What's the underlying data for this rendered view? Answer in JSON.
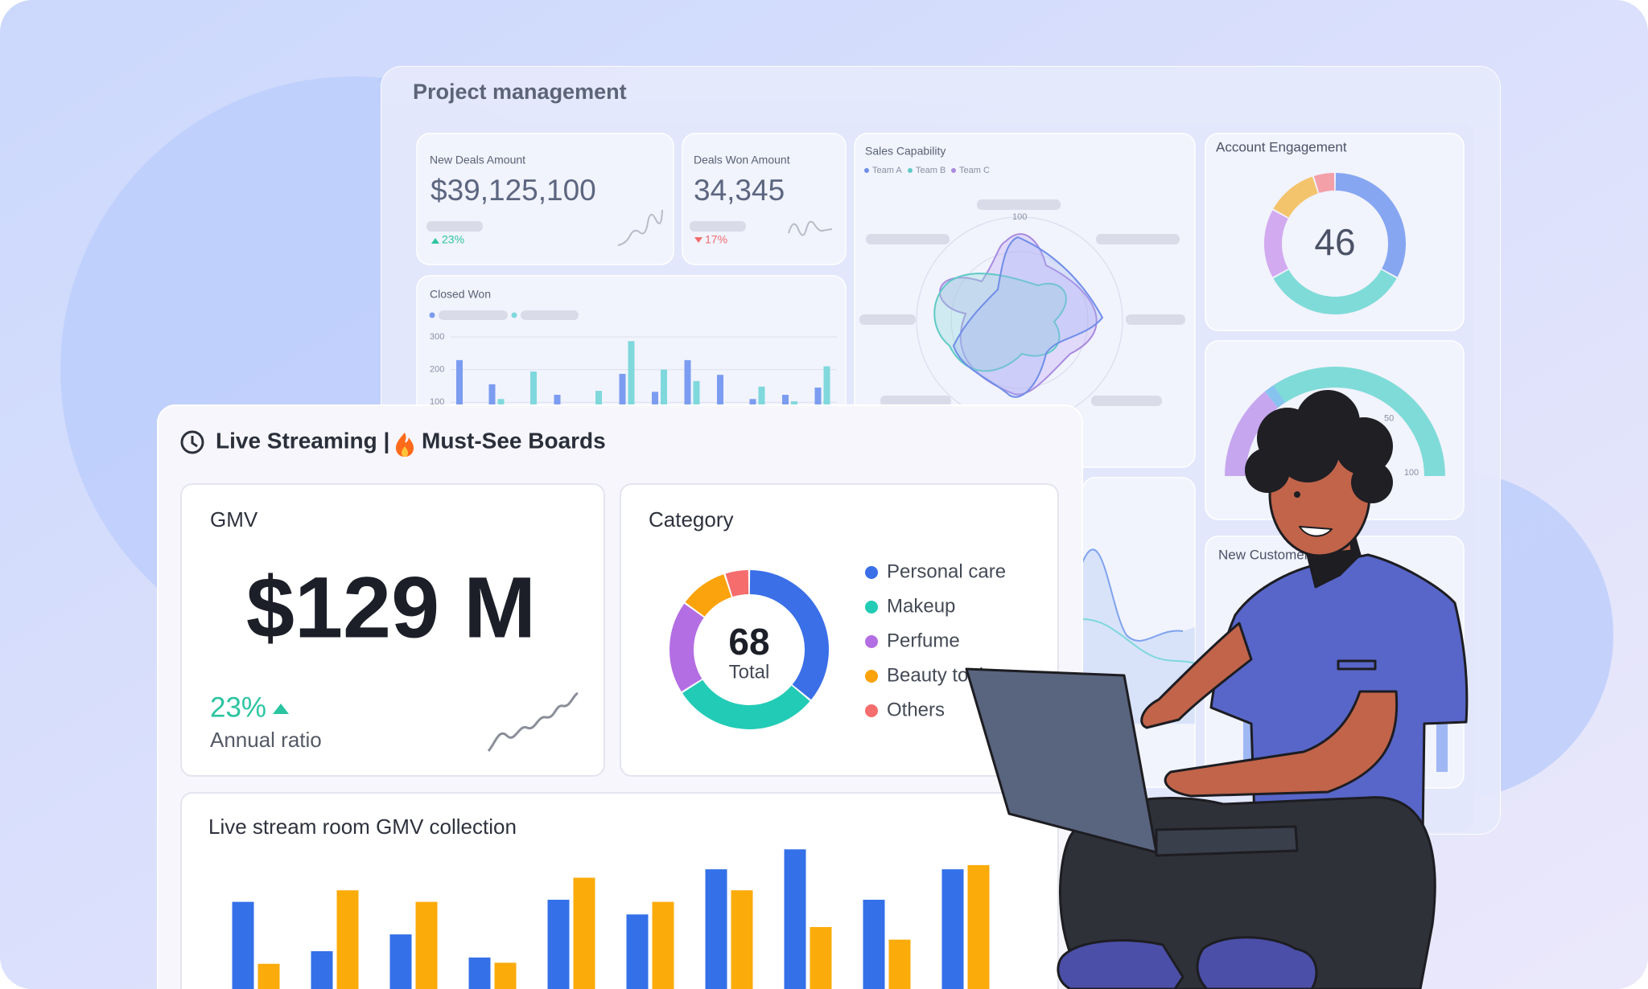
{
  "back_panel": {
    "title": "Project management",
    "new_deals": {
      "label": "New Deals Amount",
      "value": "$39,125,100",
      "change": "23%"
    },
    "deals_won": {
      "label": "Deals Won Amount",
      "value": "34,345",
      "change": "17%"
    },
    "sales_capability": {
      "title": "Sales Capability",
      "legend": [
        "Team A",
        "Team B",
        "Team C"
      ],
      "axis_label": "100"
    },
    "account_engagement": {
      "title": "Account Engagement",
      "center": "46",
      "values": [
        33,
        34,
        16,
        12,
        5
      ],
      "colors": [
        "#86a6f2",
        "#7fdbd8",
        "#d1aaf0",
        "#f3c46c",
        "#f3a0a8"
      ]
    },
    "closed_won": {
      "title": "Closed Won",
      "ylim": [
        0,
        300
      ],
      "yticks": [
        100,
        200,
        300
      ],
      "series": [
        {
          "color": "#7b9cf0",
          "values": [
            229,
            155,
            null,
            123,
            null,
            187,
            132,
            229,
            184,
            110,
            123,
            145
          ]
        },
        {
          "color": "#7fd8dc",
          "values": [
            null,
            110,
            194,
            null,
            135,
            287,
            200,
            165,
            null,
            148,
            103,
            210
          ]
        }
      ]
    },
    "gauge": {
      "lim": [
        0,
        100
      ],
      "ticks": [
        50,
        100
      ]
    },
    "new_customers": {
      "title": "New Customers"
    }
  },
  "front_panel": {
    "title": "Live Streaming |",
    "subtitle": "Must-See Boards",
    "gmv": {
      "title": "GMV",
      "value": "$129 M",
      "change": "23%",
      "change_label": "Annual ratio"
    },
    "category": {
      "title": "Category",
      "center_value": "68",
      "center_label": "Total",
      "categories": [
        "Personal care",
        "Makeup",
        "Perfume",
        "Beauty tools",
        "Others"
      ],
      "values": [
        36,
        30,
        19,
        10,
        5
      ],
      "colors": [
        "#3b6fe8",
        "#22cbb5",
        "#b36ee3",
        "#fba30c",
        "#f56d6d"
      ]
    },
    "collection": {
      "title": "Live stream room GMV collection",
      "series": [
        {
          "color": "#3470e8",
          "values": [
            83,
            36,
            52,
            30,
            85,
            71,
            114,
            133,
            85,
            114
          ]
        },
        {
          "color": "#fbab0a",
          "values": [
            24,
            94,
            83,
            25,
            106,
            83,
            94,
            59,
            47,
            118
          ]
        }
      ]
    }
  }
}
